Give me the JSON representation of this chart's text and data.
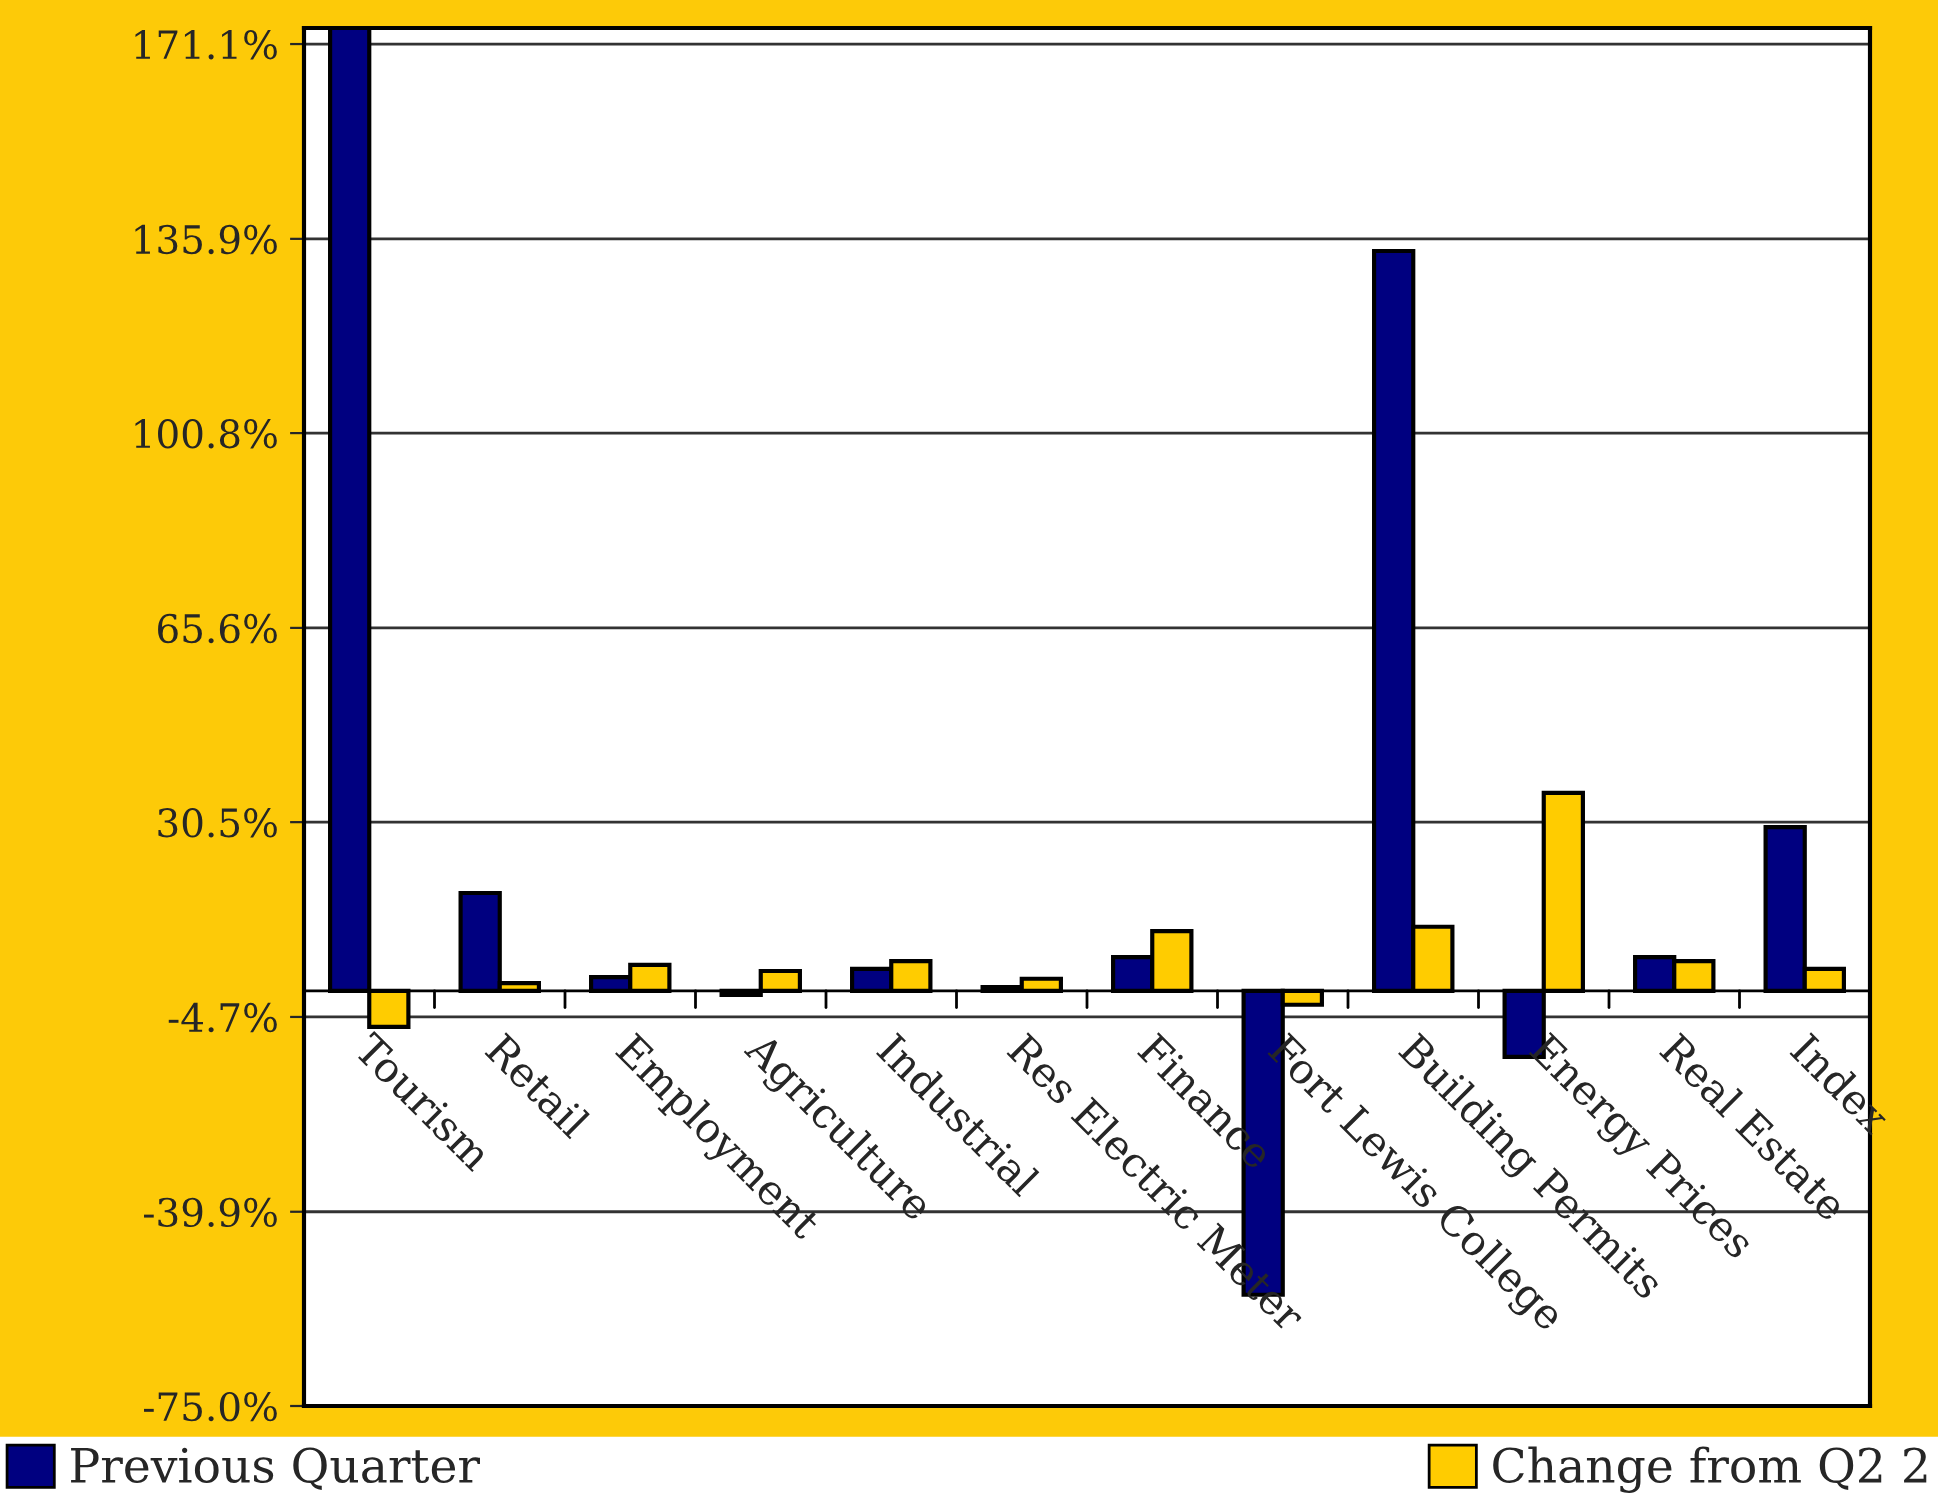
{
  "chart_data": {
    "type": "bar",
    "categories": [
      "Tourism",
      "Retail",
      "Employment",
      "Agriculture",
      "Industrial",
      "Res Electric Meter",
      "Finance",
      "Fort Lewis College",
      "Building Permits",
      "Energy Prices",
      "Real Estate",
      "Index"
    ],
    "series": [
      {
        "name": "Previous Quarter",
        "color": "#000080",
        "values": [
          174.0,
          17.7,
          2.5,
          -0.7,
          4.0,
          0.7,
          6.1,
          -54.9,
          133.7,
          -11.9,
          6.1,
          29.6
        ]
      },
      {
        "name": "Change from Q2 2",
        "color": "#ffcc00",
        "values": [
          -6.5,
          1.4,
          4.7,
          3.6,
          5.4,
          2.2,
          10.8,
          -2.5,
          11.6,
          35.8,
          5.4,
          4.0
        ]
      }
    ],
    "ylim": [
      -75.0,
      174.0
    ],
    "yticks": [
      {
        "value": -75.0,
        "label": "-75.0%"
      },
      {
        "value": -39.9,
        "label": "-39.9%"
      },
      {
        "value": -4.7,
        "label": "-4.7%"
      },
      {
        "value": 30.5,
        "label": "30.5%"
      },
      {
        "value": 65.6,
        "label": "65.6%"
      },
      {
        "value": 100.8,
        "label": "100.8%"
      },
      {
        "value": 135.9,
        "label": "135.9%"
      },
      {
        "value": 171.1,
        "label": "171.1%"
      }
    ],
    "grid": "y",
    "legend": "bottom"
  }
}
